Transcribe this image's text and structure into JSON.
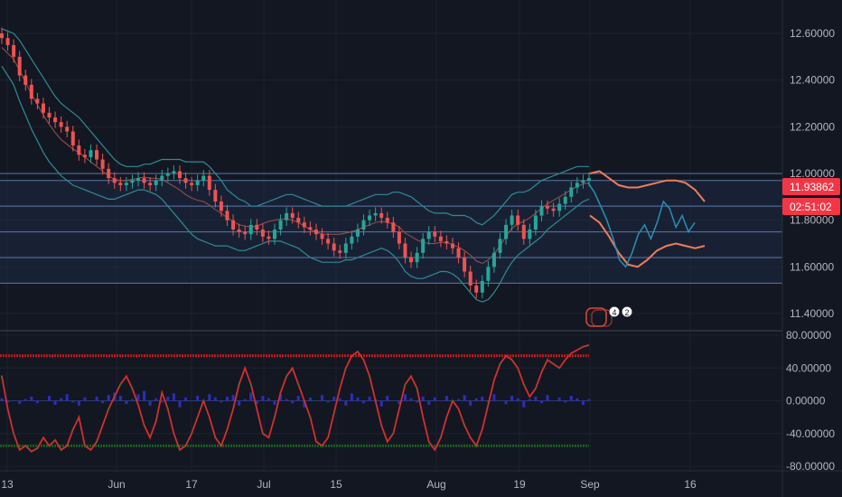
{
  "colors": {
    "background": "#131722",
    "grid": "#1e222d",
    "axis_text": "#b2b5be",
    "candle_up": "#26a69a",
    "candle_down": "#ef5350",
    "bollinger": "#2e8b96",
    "zone_line": "#5b78a8",
    "zone_fill": "#1e2a44",
    "forecast_band": "#f07c5a",
    "forecast_path": "#2a8fb3",
    "osc_upper": "#b71c1c",
    "osc_lower": "#1b5e20",
    "osc_line": "#d32f2f",
    "osc_hist": "#2d2dbf",
    "price_tag": "#f23645"
  },
  "markers": {
    "badge_a": "4",
    "badge_b": "2",
    "icon": "stacked-news-icon"
  },
  "chart_data": [
    {
      "type": "candlestick",
      "title": "",
      "y_ticks": [
        "12.60000",
        "12.40000",
        "12.20000",
        "12.00000",
        "11.80000",
        "11.60000",
        "11.40000"
      ],
      "ylim": [
        11.33,
        12.68
      ],
      "x_ticks": [
        "13",
        "Jun",
        "17",
        "Jul",
        "15",
        "Aug",
        "19",
        "Sep",
        "16"
      ],
      "last_price": "11.93862",
      "countdown": "02:51:02",
      "horizontal_levels": [
        12.0,
        11.97,
        11.86,
        11.75,
        11.64,
        11.53
      ],
      "close_series": [
        12.58,
        12.55,
        12.5,
        12.42,
        12.38,
        12.32,
        12.3,
        12.26,
        12.24,
        12.22,
        12.2,
        12.18,
        12.12,
        12.08,
        12.07,
        12.1,
        12.06,
        12.02,
        11.98,
        11.96,
        11.95,
        11.96,
        11.97,
        11.98,
        11.96,
        11.95,
        11.97,
        11.99,
        12.0,
        12.01,
        11.98,
        11.96,
        11.95,
        11.97,
        11.99,
        11.93,
        11.88,
        11.84,
        11.8,
        11.76,
        11.75,
        11.74,
        11.78,
        11.76,
        11.73,
        11.72,
        11.76,
        11.8,
        11.83,
        11.81,
        11.79,
        11.77,
        11.76,
        11.74,
        11.72,
        11.7,
        11.67,
        11.66,
        11.7,
        11.73,
        11.76,
        11.8,
        11.82,
        11.83,
        11.81,
        11.79,
        11.75,
        11.7,
        11.64,
        11.62,
        11.66,
        11.72,
        11.75,
        11.73,
        11.71,
        11.7,
        11.68,
        11.64,
        11.58,
        11.52,
        11.49,
        11.54,
        11.6,
        11.66,
        11.72,
        11.78,
        11.82,
        11.78,
        11.72,
        11.76,
        11.82,
        11.86,
        11.85,
        11.84,
        11.87,
        11.9,
        11.94,
        11.96,
        11.97,
        11.98
      ],
      "bb_upper": [
        12.62,
        12.61,
        12.6,
        12.57,
        12.53,
        12.49,
        12.45,
        12.41,
        12.37,
        12.33,
        12.3,
        12.28,
        12.26,
        12.24,
        12.21,
        12.18,
        12.15,
        12.12,
        12.09,
        12.06,
        12.04,
        12.03,
        12.03,
        12.03,
        12.04,
        12.04,
        12.05,
        12.06,
        12.06,
        12.06,
        12.06,
        12.05,
        12.05,
        12.05,
        12.05,
        12.03,
        12.0,
        11.97,
        11.93,
        11.91,
        11.89,
        11.88,
        11.86,
        11.86,
        11.87,
        11.88,
        11.89,
        11.9,
        11.91,
        11.91,
        11.9,
        11.89,
        11.88,
        11.87,
        11.86,
        11.86,
        11.86,
        11.86,
        11.86,
        11.87,
        11.88,
        11.89,
        11.9,
        11.91,
        11.91,
        11.91,
        11.92,
        11.92,
        11.91,
        11.9,
        11.88,
        11.86,
        11.84,
        11.83,
        11.83,
        11.83,
        11.82,
        11.82,
        11.82,
        11.81,
        11.79,
        11.78,
        11.8,
        11.82,
        11.85,
        11.88,
        11.91,
        11.92,
        11.92,
        11.93,
        11.95,
        11.97,
        11.98,
        11.99,
        12.0,
        12.01,
        12.02,
        12.03,
        12.03,
        12.03
      ],
      "bb_lower": [
        12.46,
        12.42,
        12.38,
        12.31,
        12.25,
        12.19,
        12.14,
        12.09,
        12.05,
        12.02,
        11.99,
        11.97,
        11.95,
        11.94,
        11.93,
        11.92,
        11.91,
        11.9,
        11.89,
        11.89,
        11.9,
        11.91,
        11.92,
        11.93,
        11.93,
        11.92,
        11.91,
        11.89,
        11.86,
        11.83,
        11.8,
        11.77,
        11.74,
        11.72,
        11.71,
        11.7,
        11.69,
        11.69,
        11.69,
        11.68,
        11.67,
        11.67,
        11.68,
        11.69,
        11.7,
        11.71,
        11.71,
        11.71,
        11.7,
        11.69,
        11.68,
        11.66,
        11.64,
        11.63,
        11.62,
        11.62,
        11.62,
        11.62,
        11.63,
        11.63,
        11.64,
        11.65,
        11.66,
        11.67,
        11.68,
        11.67,
        11.65,
        11.62,
        11.58,
        11.56,
        11.55,
        11.55,
        11.56,
        11.57,
        11.58,
        11.58,
        11.57,
        11.55,
        11.52,
        11.49,
        11.46,
        11.45,
        11.46,
        11.49,
        11.53,
        11.58,
        11.62,
        11.65,
        11.67,
        11.69,
        11.71,
        11.73,
        11.76,
        11.78,
        11.8,
        11.82,
        11.84,
        11.86,
        11.88,
        11.89
      ],
      "forecast_upper": [
        12.0,
        12.01,
        11.98,
        11.95,
        11.94,
        11.94,
        11.95,
        11.96,
        11.97,
        11.97,
        11.96,
        11.93,
        11.88
      ],
      "forecast_lower": [
        11.82,
        11.79,
        11.73,
        11.66,
        11.61,
        11.6,
        11.63,
        11.67,
        11.69,
        11.7,
        11.69,
        11.68,
        11.69
      ],
      "forecast_path": [
        11.96,
        11.92,
        11.86,
        11.8,
        11.72,
        11.63,
        11.6,
        11.66,
        11.74,
        11.78,
        11.72,
        11.79,
        11.88,
        11.85,
        11.77,
        11.82,
        11.75,
        11.79
      ]
    },
    {
      "type": "line",
      "title": "",
      "y_ticks": [
        "80.00000",
        "40.00000",
        "0.00000",
        "-40.00000",
        "-80.00000"
      ],
      "ylim": [
        -86,
        86
      ],
      "upper_band": 55,
      "lower_band": -55,
      "oscillator": [
        30,
        -10,
        -40,
        -60,
        -55,
        -62,
        -58,
        -45,
        -55,
        -48,
        -60,
        -55,
        -35,
        -20,
        -55,
        -60,
        -50,
        -30,
        -10,
        5,
        20,
        30,
        15,
        -5,
        -30,
        -45,
        -25,
        10,
        -10,
        -40,
        -60,
        -55,
        -40,
        -20,
        0,
        -20,
        -45,
        -55,
        -35,
        -10,
        20,
        40,
        20,
        -10,
        -40,
        -45,
        -20,
        10,
        30,
        40,
        20,
        0,
        -20,
        -50,
        -55,
        -45,
        -15,
        15,
        40,
        55,
        60,
        50,
        30,
        0,
        -30,
        -50,
        -40,
        -10,
        20,
        30,
        15,
        -20,
        -50,
        -60,
        -45,
        -20,
        0,
        -10,
        -30,
        -45,
        -55,
        -35,
        -5,
        25,
        45,
        55,
        50,
        40,
        20,
        5,
        15,
        35,
        50,
        45,
        40,
        50,
        58,
        62,
        66,
        68
      ],
      "histogram": [
        3,
        -2,
        0,
        -4,
        2,
        5,
        -3,
        0,
        6,
        -5,
        3,
        8,
        -2,
        -6,
        4,
        0,
        5,
        -3,
        7,
        10,
        6,
        -4,
        2,
        8,
        12,
        -6,
        3,
        -2,
        5,
        9,
        -8,
        4,
        0,
        6,
        -3,
        8,
        4,
        -2,
        5,
        7,
        -6,
        2,
        10,
        -4,
        6,
        3,
        -5,
        8,
        2,
        -3,
        6,
        -8,
        4,
        0,
        7,
        -2,
        5,
        3,
        -6,
        9,
        4,
        -3,
        5,
        2,
        -7,
        6,
        0,
        -4,
        8,
        3,
        -2,
        5,
        -5,
        4,
        0,
        6,
        -3,
        2,
        7,
        -6,
        3,
        5,
        -2,
        8,
        0,
        -4,
        6,
        3,
        -8,
        2,
        5,
        -3,
        7,
        0,
        4,
        -2,
        6,
        3,
        -5,
        2
      ]
    }
  ]
}
